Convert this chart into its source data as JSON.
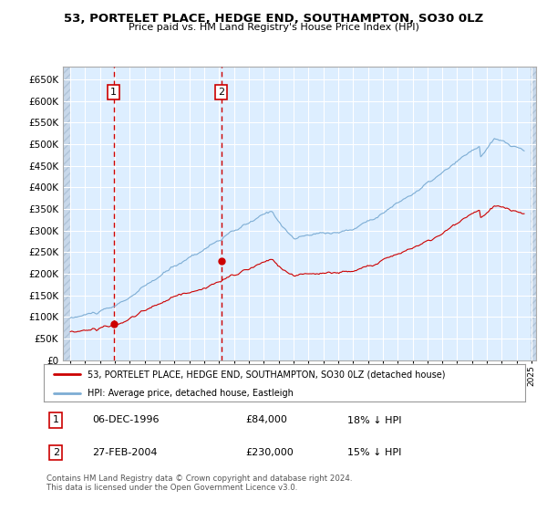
{
  "title": "53, PORTELET PLACE, HEDGE END, SOUTHAMPTON, SO30 0LZ",
  "subtitle": "Price paid vs. HM Land Registry's House Price Index (HPI)",
  "background_color": "#ffffff",
  "plot_bg_color": "#ddeeff",
  "grid_color": "#ffffff",
  "ylim": [
    0,
    680000
  ],
  "yticks": [
    0,
    50000,
    100000,
    150000,
    200000,
    250000,
    300000,
    350000,
    400000,
    450000,
    500000,
    550000,
    600000,
    650000
  ],
  "xlim_start": 1993.5,
  "xlim_end": 2025.3,
  "hatch_end": 2024.92,
  "sale1": {
    "year": 1996.92,
    "price": 84000,
    "label": "1"
  },
  "sale2": {
    "year": 2004.15,
    "price": 230000,
    "label": "2"
  },
  "vline_color": "#cc0000",
  "hpi_color": "#7dadd4",
  "price_color": "#cc0000",
  "legend_label1": "53, PORTELET PLACE, HEDGE END, SOUTHAMPTON, SO30 0LZ (detached house)",
  "legend_label2": "HPI: Average price, detached house, Eastleigh",
  "table_row1": [
    "1",
    "06-DEC-1996",
    "£84,000",
    "18% ↓ HPI"
  ],
  "table_row2": [
    "2",
    "27-FEB-2004",
    "£230,000",
    "15% ↓ HPI"
  ],
  "footnote": "Contains HM Land Registry data © Crown copyright and database right 2024.\nThis data is licensed under the Open Government Licence v3.0."
}
